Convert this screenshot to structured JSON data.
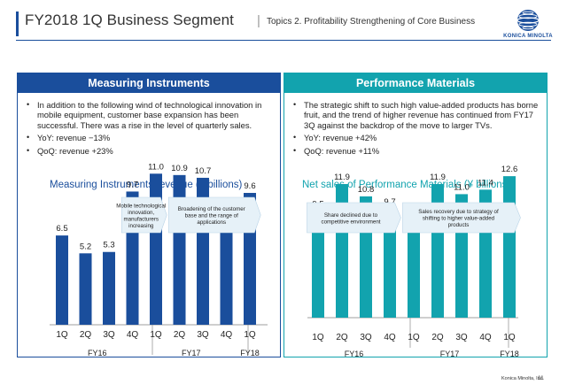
{
  "header": {
    "title": "FY2018 1Q Business Segment",
    "separator": "|",
    "subtitle": "Topics 2. Profitability Strengthening of Core Business",
    "logo_text": "KONICA MINOLTA",
    "accent": "#1a4e9c"
  },
  "left_panel": {
    "heading": "Measuring  Instruments",
    "color": "#1a4e9c",
    "bullets": [
      "In addition to the following wind of technological innovation in mobile equipment, customer base expansion has been successful. There was a rise in the level of quarterly sales.",
      "YoY: revenue −13%",
      "QoQ: revenue +23%"
    ],
    "chart_title": "Measuring Instruments revenue (¥ billions)"
  },
  "right_panel": {
    "heading": "Performance Materials",
    "color": "#12a3ae",
    "bullets": [
      "The strategic shift to such high value-added products has borne fruit, and the trend of higher revenue has continued from FY17 3Q against the backdrop of the move to larger TVs.",
      "YoY: revenue +42%",
      "QoQ: revenue +11%"
    ],
    "chart_title": "Net sales of Performance Materials (¥ billions)"
  },
  "chart_data": [
    {
      "type": "bar",
      "title": "Measuring Instruments revenue (¥ billions)",
      "categories": [
        "1Q",
        "2Q",
        "3Q",
        "4Q",
        "1Q",
        "2Q",
        "3Q",
        "4Q",
        "1Q"
      ],
      "groups": [
        {
          "label": "FY16",
          "from": 0,
          "to": 3
        },
        {
          "label": "FY17",
          "from": 4,
          "to": 7
        },
        {
          "label": "FY18",
          "from": 8,
          "to": 8
        }
      ],
      "values": [
        6.5,
        5.2,
        5.3,
        9.7,
        11.0,
        10.9,
        10.7,
        7.8,
        9.6
      ],
      "value_labels": [
        "6.5",
        "5.2",
        "5.3",
        "9.7",
        "11.0",
        "10.9",
        "10.7",
        "7.8",
        "9.6"
      ],
      "color": "#1a4e9c",
      "ylim": [
        0,
        12.5
      ],
      "annotations": [
        {
          "text": [
            "Mobile technological",
            "innovation,",
            "manufacturers",
            "increasing"
          ],
          "from": 3,
          "to": 4
        },
        {
          "text": [
            "Broadening of the customer",
            "base and the range of",
            "applications"
          ],
          "from": 5,
          "to": 8
        }
      ]
    },
    {
      "type": "bar",
      "title": "Net sales of Performance Materials (¥ billions)",
      "categories": [
        "1Q",
        "2Q",
        "3Q",
        "4Q",
        "1Q",
        "2Q",
        "3Q",
        "4Q",
        "1Q"
      ],
      "groups": [
        {
          "label": "FY16",
          "from": 0,
          "to": 3
        },
        {
          "label": "FY17",
          "from": 4,
          "to": 7
        },
        {
          "label": "FY18",
          "from": 8,
          "to": 8
        }
      ],
      "values": [
        9.5,
        11.9,
        10.8,
        9.7,
        8.9,
        11.9,
        11.0,
        11.4,
        12.6
      ],
      "value_labels": [
        "9.5",
        "11.9",
        "10.8",
        "9.7",
        "8.9",
        "11.9",
        "11.0",
        "11.4",
        "12.6"
      ],
      "color": "#12a3ae",
      "ylim": [
        0,
        14.5
      ],
      "annotations": [
        {
          "text": [
            "Share declined due to",
            "competitive environment"
          ],
          "from": 0,
          "to": 3
        },
        {
          "text": [
            "Sales recovery due to strategy of",
            "shifting to higher value-added",
            "products"
          ],
          "from": 4,
          "to": 8
        }
      ]
    }
  ],
  "footer": {
    "company": "Konica Minolta, Inc.",
    "page": "11"
  }
}
